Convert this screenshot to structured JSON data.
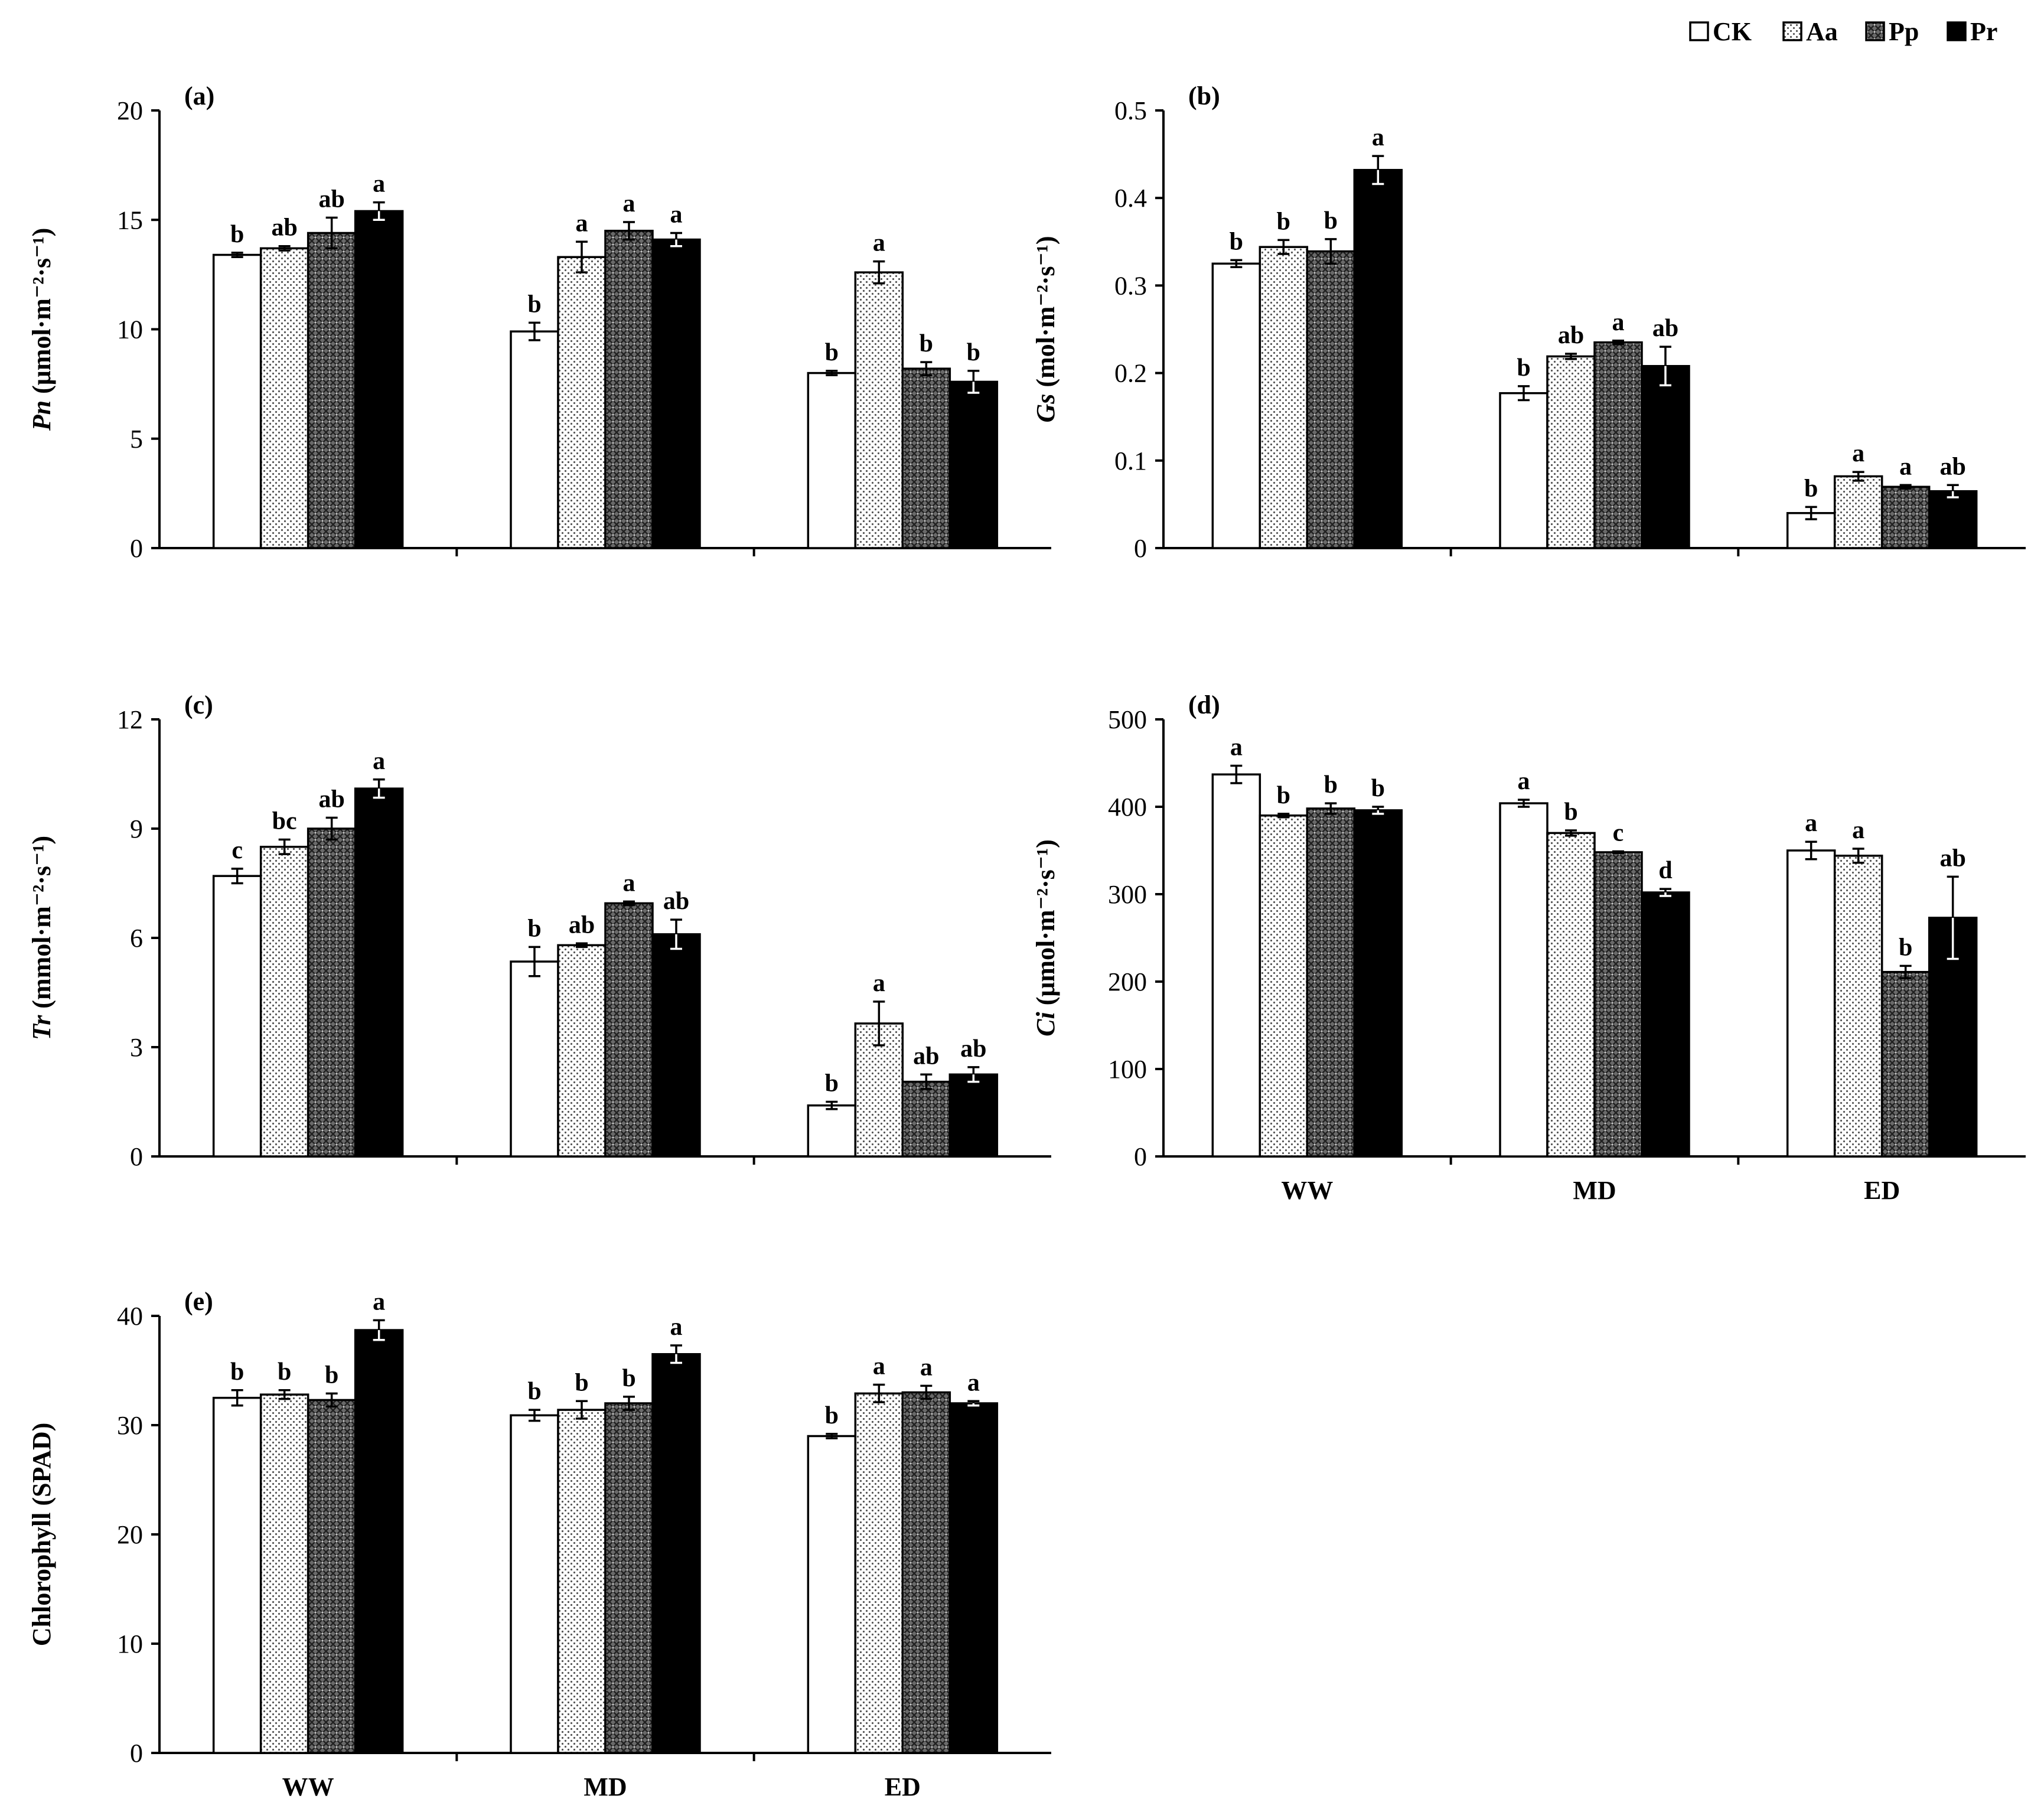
{
  "legend": {
    "entries": [
      {
        "key": "CK",
        "label": "CK",
        "pattern": "white"
      },
      {
        "key": "Aa",
        "label": "Aa",
        "pattern": "dots"
      },
      {
        "key": "Pp",
        "label": "Pp",
        "pattern": "grid"
      },
      {
        "key": "Pr",
        "label": "Pr",
        "pattern": "black"
      }
    ]
  },
  "chart_data": [
    {
      "type": "bar",
      "id": "a",
      "panel_label": "(a)",
      "ylabel_var": "Pn",
      "ylabel_unit": " (μmol·m⁻²·s⁻¹)",
      "ylim": [
        0,
        20
      ],
      "yticks": [
        0,
        5,
        10,
        15,
        20
      ],
      "yticks_text": [
        "0",
        "5",
        "10",
        "15",
        "20"
      ],
      "categories": [
        "WW",
        "MD",
        "ED"
      ],
      "show_xlabels": false,
      "series": [
        {
          "name": "CK",
          "values": [
            13.4,
            9.9,
            8.0
          ],
          "errors": [
            0.1,
            0.4,
            0.1
          ],
          "letters": [
            "b",
            "b",
            "b"
          ]
        },
        {
          "name": "Aa",
          "values": [
            13.7,
            13.3,
            12.6
          ],
          "errors": [
            0.1,
            0.7,
            0.5
          ],
          "letters": [
            "ab",
            "a",
            "a"
          ]
        },
        {
          "name": "Pp",
          "values": [
            14.4,
            14.5,
            8.2
          ],
          "errors": [
            0.7,
            0.4,
            0.3
          ],
          "letters": [
            "ab",
            "a",
            "b"
          ]
        },
        {
          "name": "Pr",
          "values": [
            15.4,
            14.1,
            7.6
          ],
          "errors": [
            0.4,
            0.3,
            0.5
          ],
          "letters": [
            "a",
            "a",
            "b"
          ]
        }
      ]
    },
    {
      "type": "bar",
      "id": "b",
      "panel_label": "(b)",
      "ylabel_var": "Gs",
      "ylabel_unit": " (mol·m⁻²·s⁻¹)",
      "ylim": [
        0,
        0.5
      ],
      "yticks": [
        0,
        0.1,
        0.2,
        0.3,
        0.4,
        0.5
      ],
      "yticks_text": [
        "0",
        "0.1",
        "0.2",
        "0.3",
        "0.4",
        "0.5"
      ],
      "categories": [
        "WW",
        "MD",
        "ED"
      ],
      "show_xlabels": false,
      "series": [
        {
          "name": "CK",
          "values": [
            0.325,
            0.177,
            0.04
          ],
          "errors": [
            0.004,
            0.008,
            0.007
          ],
          "letters": [
            "b",
            "b",
            "b"
          ]
        },
        {
          "name": "Aa",
          "values": [
            0.344,
            0.219,
            0.082
          ],
          "errors": [
            0.008,
            0.003,
            0.005
          ],
          "letters": [
            "b",
            "ab",
            "a"
          ]
        },
        {
          "name": "Pp",
          "values": [
            0.339,
            0.235,
            0.07
          ],
          "errors": [
            0.014,
            0.002,
            0.002
          ],
          "letters": [
            "b",
            "a",
            "a"
          ]
        },
        {
          "name": "Pr",
          "values": [
            0.432,
            0.208,
            0.065
          ],
          "errors": [
            0.016,
            0.022,
            0.007
          ],
          "letters": [
            "a",
            "ab",
            "ab"
          ]
        }
      ]
    },
    {
      "type": "bar",
      "id": "c",
      "panel_label": "(c)",
      "ylabel_var": "Tr",
      "ylabel_unit": " (mmol·m⁻²·s⁻¹)",
      "ylim": [
        0,
        12
      ],
      "yticks": [
        0,
        3,
        6,
        9,
        12
      ],
      "yticks_text": [
        "0",
        "3",
        "6",
        "9",
        "12"
      ],
      "categories": [
        "WW",
        "MD",
        "ED"
      ],
      "show_xlabels": false,
      "series": [
        {
          "name": "CK",
          "values": [
            7.7,
            5.35,
            1.4
          ],
          "errors": [
            0.2,
            0.4,
            0.1
          ],
          "letters": [
            "c",
            "b",
            "b"
          ]
        },
        {
          "name": "Aa",
          "values": [
            8.5,
            5.8,
            3.65
          ],
          "errors": [
            0.2,
            0.05,
            0.6
          ],
          "letters": [
            "bc",
            "ab",
            "a"
          ]
        },
        {
          "name": "Pp",
          "values": [
            9.0,
            6.95,
            2.05
          ],
          "errors": [
            0.3,
            0.05,
            0.2
          ],
          "letters": [
            "ab",
            "a",
            "ab"
          ]
        },
        {
          "name": "Pr",
          "values": [
            10.1,
            6.1,
            2.25
          ],
          "errors": [
            0.25,
            0.4,
            0.2
          ],
          "letters": [
            "a",
            "ab",
            "ab"
          ]
        }
      ]
    },
    {
      "type": "bar",
      "id": "d",
      "panel_label": "(d)",
      "ylabel_var": "Ci",
      "ylabel_unit": " (μmol·m⁻²·s⁻¹)",
      "ylim": [
        0,
        500
      ],
      "yticks": [
        0,
        100,
        200,
        300,
        400,
        500
      ],
      "yticks_text": [
        "0",
        "100",
        "200",
        "300",
        "400",
        "500"
      ],
      "categories": [
        "WW",
        "MD",
        "ED"
      ],
      "show_xlabels": true,
      "series": [
        {
          "name": "CK",
          "values": [
            437,
            404,
            350
          ],
          "errors": [
            10,
            4,
            10
          ],
          "letters": [
            "a",
            "a",
            "a"
          ]
        },
        {
          "name": "Aa",
          "values": [
            390,
            370,
            344
          ],
          "errors": [
            2,
            3,
            8
          ],
          "letters": [
            "b",
            "b",
            "a"
          ]
        },
        {
          "name": "Pp",
          "values": [
            398,
            348,
            211
          ],
          "errors": [
            6,
            1,
            7
          ],
          "letters": [
            "b",
            "c",
            "b"
          ]
        },
        {
          "name": "Pr",
          "values": [
            396,
            302,
            273
          ],
          "errors": [
            4,
            4,
            47
          ],
          "letters": [
            "b",
            "d",
            "ab"
          ]
        }
      ]
    },
    {
      "type": "bar",
      "id": "e",
      "panel_label": "(e)",
      "ylabel_var": "",
      "ylabel_unit": "Chlorophyll (SPAD)",
      "ylim": [
        0,
        40
      ],
      "yticks": [
        0,
        10,
        20,
        30,
        40
      ],
      "yticks_text": [
        "0",
        "10",
        "20",
        "30",
        "40"
      ],
      "categories": [
        "WW",
        "MD",
        "ED"
      ],
      "show_xlabels": true,
      "series": [
        {
          "name": "CK",
          "values": [
            32.5,
            30.9,
            29.0
          ],
          "errors": [
            0.7,
            0.5,
            0.2
          ],
          "letters": [
            "b",
            "b",
            "b"
          ]
        },
        {
          "name": "Aa",
          "values": [
            32.8,
            31.4,
            32.9
          ],
          "errors": [
            0.4,
            0.8,
            0.8
          ],
          "letters": [
            "b",
            "b",
            "a"
          ]
        },
        {
          "name": "Pp",
          "values": [
            32.3,
            32.0,
            33.0
          ],
          "errors": [
            0.6,
            0.6,
            0.6
          ],
          "letters": [
            "b",
            "b",
            "a"
          ]
        },
        {
          "name": "Pr",
          "values": [
            38.7,
            36.5,
            32.0
          ],
          "errors": [
            0.9,
            0.8,
            0.2
          ],
          "letters": [
            "a",
            "a",
            "a"
          ]
        }
      ]
    }
  ]
}
